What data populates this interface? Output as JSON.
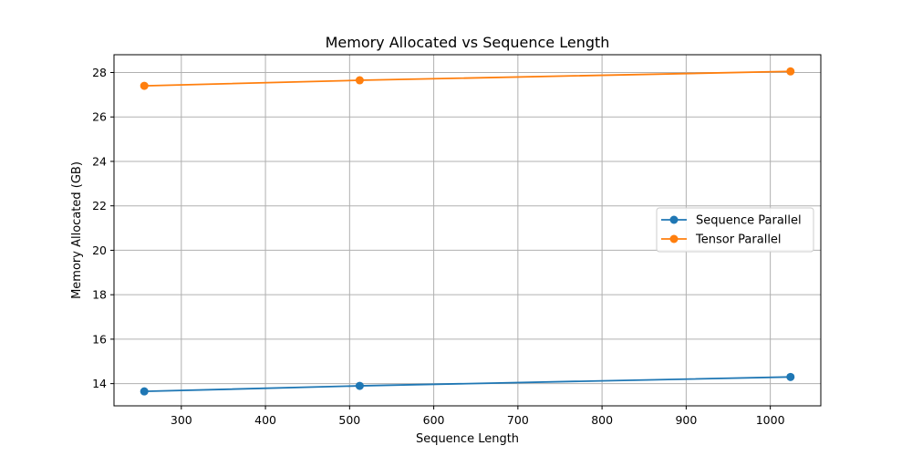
{
  "chart_data": {
    "type": "line",
    "title": "Memory Allocated vs Sequence Length",
    "xlabel": "Sequence Length",
    "ylabel": "Memory Allocated (GB)",
    "xlim": [
      220,
      1060
    ],
    "ylim": [
      13,
      28.8
    ],
    "xticks": [
      300,
      400,
      500,
      600,
      700,
      800,
      900,
      1000
    ],
    "yticks": [
      14,
      16,
      18,
      20,
      22,
      24,
      26,
      28
    ],
    "grid": true,
    "legend_position": "center-right",
    "x": [
      256,
      512,
      1024
    ],
    "series": [
      {
        "name": "Sequence Parallel",
        "values": [
          13.65,
          13.9,
          14.3
        ],
        "color": "#1f77b4",
        "marker": "circle"
      },
      {
        "name": "Tensor Parallel",
        "values": [
          27.4,
          27.65,
          28.05
        ],
        "color": "#ff7f0e",
        "marker": "circle"
      }
    ]
  }
}
